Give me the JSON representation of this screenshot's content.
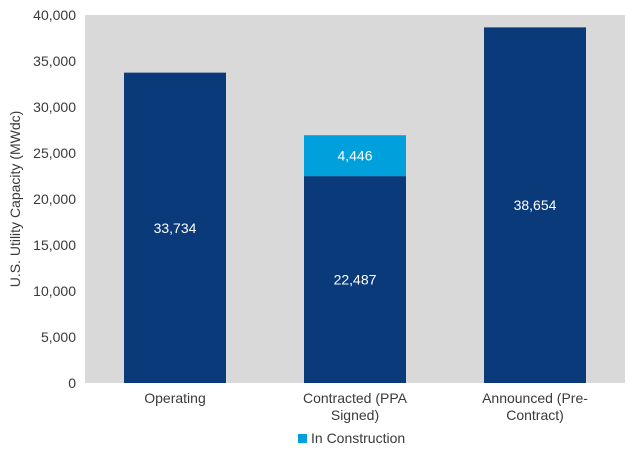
{
  "chart_data": {
    "type": "bar",
    "stacked": true,
    "title": "",
    "xlabel": "",
    "ylabel": "U.S. Utility Capacity (MWdc)",
    "ylim": [
      0,
      40000
    ],
    "ytick_step": 5000,
    "yticks": [
      "0",
      "5,000",
      "10,000",
      "15,000",
      "20,000",
      "25,000",
      "30,000",
      "35,000",
      "40,000"
    ],
    "categories": [
      [
        "Operating"
      ],
      [
        "Contracted (PPA",
        "Signed)"
      ],
      [
        "Announced (Pre-",
        "Contract)"
      ]
    ],
    "series": [
      {
        "color": "#0a3a7a",
        "values": [
          33734,
          22487,
          38654
        ],
        "labels": [
          "33,734",
          "22,487",
          "38,654"
        ]
      },
      {
        "name": "In Construction",
        "color": "#00a0dc",
        "values": [
          null,
          4446,
          null
        ],
        "labels": [
          "",
          "4,446",
          ""
        ]
      }
    ],
    "gridlines": false,
    "legend": {
      "position": "bottom",
      "entries": [
        "In Construction"
      ]
    }
  },
  "colors": {
    "plot_background": "#d9d9d9",
    "axis_text": "#3a3a3a"
  }
}
